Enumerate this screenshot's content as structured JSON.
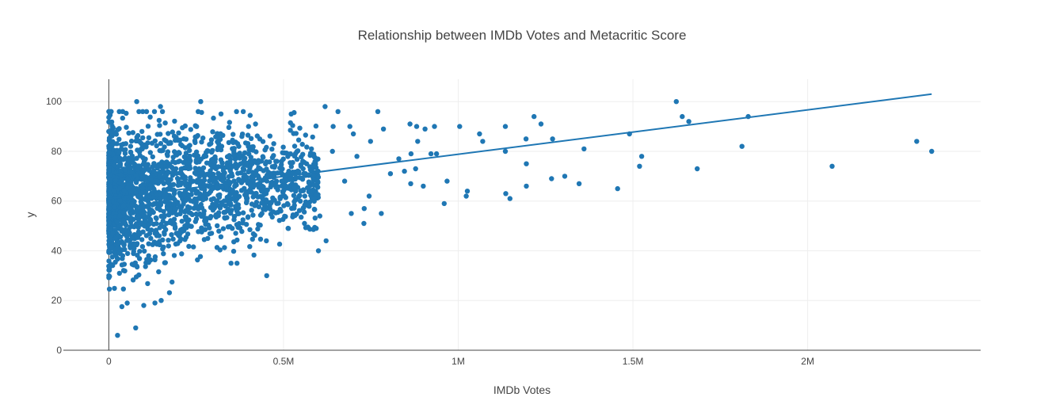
{
  "chart_data": {
    "type": "scatter",
    "title": "Relationship between IMDb Votes and Metacritic Score",
    "xlabel": "IMDb Votes",
    "ylabel": "y",
    "xlim": [
      -130000,
      2495000
    ],
    "ylim": [
      0,
      109
    ],
    "grid": true,
    "legend": "none",
    "x_ticks": [
      {
        "value": 0,
        "label": "0"
      },
      {
        "value": 500000,
        "label": "0.5M"
      },
      {
        "value": 1000000,
        "label": "1M"
      },
      {
        "value": 1500000,
        "label": "1.5M"
      },
      {
        "value": 2000000,
        "label": "2M"
      }
    ],
    "y_ticks": [
      {
        "value": 0,
        "label": "0"
      },
      {
        "value": 20,
        "label": "20"
      },
      {
        "value": 40,
        "label": "40"
      },
      {
        "value": 60,
        "label": "60"
      },
      {
        "value": 80,
        "label": "80"
      },
      {
        "value": 100,
        "label": "100"
      }
    ],
    "colors": {
      "marker": "#1f77b4",
      "trendline": "#1f77b4",
      "grid": "#eeeeee",
      "axis": "#444444"
    },
    "series": [
      {
        "type": "scatter",
        "points": [
          [
            1624000,
            100
          ],
          [
            1830000,
            94
          ],
          [
            1641000,
            94
          ],
          [
            1660000,
            92
          ],
          [
            1490000,
            87
          ],
          [
            1812000,
            82
          ],
          [
            2312000,
            84
          ],
          [
            2355000,
            80
          ],
          [
            2070000,
            74
          ],
          [
            1684000,
            73
          ],
          [
            1525000,
            78
          ],
          [
            1519000,
            74
          ],
          [
            1456000,
            65
          ],
          [
            1360000,
            81
          ],
          [
            1346000,
            67
          ],
          [
            1305000,
            70
          ],
          [
            1267000,
            69
          ],
          [
            1270000,
            85
          ],
          [
            1237000,
            91
          ],
          [
            1217000,
            94
          ],
          [
            1148000,
            61
          ],
          [
            1136000,
            63
          ],
          [
            1195000,
            66
          ],
          [
            1195000,
            75
          ],
          [
            1194000,
            85
          ],
          [
            1135000,
            90
          ],
          [
            1135000,
            80
          ],
          [
            1070000,
            84
          ],
          [
            1061000,
            87
          ],
          [
            1026000,
            64
          ],
          [
            1023000,
            62
          ],
          [
            1004000,
            90
          ],
          [
            968000,
            68
          ],
          [
            960000,
            59
          ],
          [
            938000,
            79
          ],
          [
            922000,
            79
          ],
          [
            932000,
            90
          ],
          [
            905000,
            89
          ],
          [
            900000,
            66
          ],
          [
            881000,
            90
          ],
          [
            884000,
            84
          ],
          [
            878000,
            73
          ],
          [
            862000,
            91
          ],
          [
            864000,
            67
          ],
          [
            865000,
            79
          ],
          [
            846000,
            72
          ],
          [
            830000,
            77
          ],
          [
            806000,
            71
          ],
          [
            780000,
            55
          ],
          [
            786000,
            89
          ],
          [
            770000,
            96
          ],
          [
            749000,
            84
          ],
          [
            745000,
            62
          ],
          [
            730000,
            51
          ],
          [
            731000,
            57
          ],
          [
            710000,
            78
          ],
          [
            700000,
            87
          ],
          [
            690000,
            90
          ],
          [
            694000,
            55
          ],
          [
            675000,
            68
          ],
          [
            656000,
            96
          ],
          [
            640000,
            80
          ],
          [
            642000,
            90
          ],
          [
            619000,
            98
          ],
          [
            622000,
            44
          ],
          [
            600000,
            40
          ],
          [
            604000,
            54
          ],
          [
            599000,
            72
          ],
          [
            560000,
            51
          ],
          [
            580000,
            81
          ],
          [
            561000,
            62
          ],
          [
            452000,
            30
          ],
          [
            451000,
            44
          ],
          [
            367000,
            35
          ],
          [
            350000,
            35
          ],
          [
            77000,
            9
          ],
          [
            25000,
            6
          ],
          [
            150000,
            20
          ],
          [
            132000,
            19
          ],
          [
            100000,
            18
          ],
          [
            263000,
            100
          ],
          [
            80000,
            100
          ],
          [
            148000,
            98
          ],
          [
            30000,
            96
          ],
          [
            522000,
            95
          ],
          [
            420000,
            91
          ],
          [
            400000,
            90
          ],
          [
            381000,
            86
          ],
          [
            372000,
            82
          ]
        ]
      },
      {
        "type": "line",
        "name": "",
        "x": [
          0,
          2355000
        ],
        "y": [
          61.0,
          103.0
        ]
      }
    ],
    "dense_cluster": {
      "count": 2100,
      "x_range": [
        0,
        600000
      ],
      "y_mean": 62,
      "y_sd": 14
    }
  }
}
